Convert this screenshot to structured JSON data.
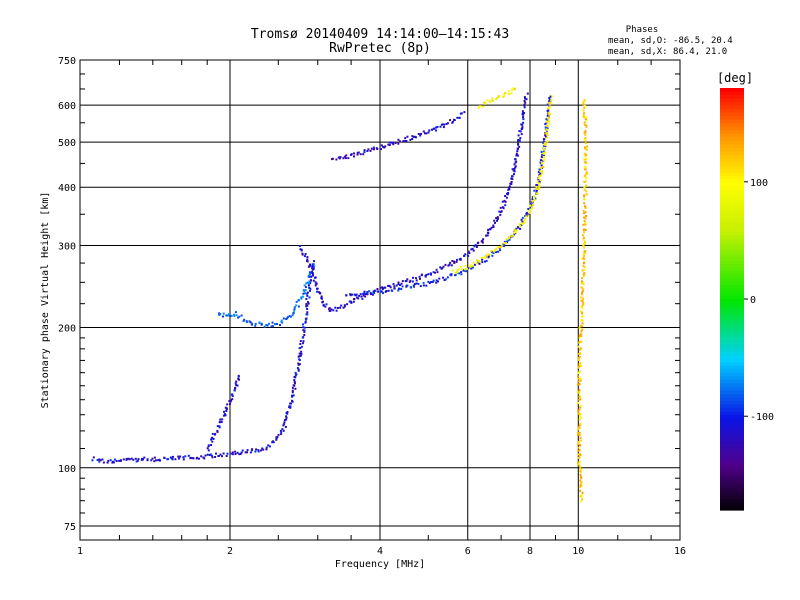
{
  "chart_data": {
    "type": "scatter",
    "title": "Tromsø 20140409 14:14:00—14:15:43",
    "subtitle": "RwPretec (8p)",
    "xlabel": "Frequency [MHz]",
    "ylabel": "Stationary phase Virtual Height [km]",
    "xscale": "log",
    "yscale": "log",
    "xlim": [
      1,
      16
    ],
    "ylim": [
      70,
      750
    ],
    "x_ticks": [
      1,
      2,
      4,
      6,
      8,
      10,
      16
    ],
    "y_ticks": [
      75,
      100,
      200,
      300,
      400,
      500,
      600,
      750
    ],
    "grid": true,
    "phases": {
      "label": "Phases",
      "line_o": "mean, sd,O: -86.5, 20.4",
      "line_x": "mean, sd,X:  86.4, 21.0"
    },
    "colorbar": {
      "label": "[deg]",
      "range": [
        -180,
        180
      ],
      "ticks": [
        100,
        0,
        -100
      ],
      "colormap": "rainbow"
    },
    "traces": [
      {
        "points": [
          [
            1.06,
            105
          ],
          [
            1.1,
            104
          ],
          [
            1.2,
            104
          ],
          [
            1.3,
            104.5
          ],
          [
            1.45,
            105
          ],
          [
            1.6,
            105.5
          ],
          [
            1.75,
            106
          ],
          [
            1.9,
            107
          ],
          [
            2.05,
            108
          ],
          [
            2.2,
            109
          ],
          [
            2.35,
            111
          ],
          [
            2.45,
            115
          ],
          [
            2.55,
            122
          ],
          [
            2.62,
            135
          ],
          [
            2.68,
            150
          ],
          [
            2.74,
            170
          ],
          [
            2.8,
            200
          ],
          [
            2.85,
            230
          ],
          [
            2.9,
            260
          ],
          [
            2.94,
            280
          ]
        ],
        "phase": -110
      },
      {
        "points": [
          [
            1.8,
            110
          ],
          [
            1.85,
            118
          ],
          [
            1.9,
            125
          ],
          [
            1.95,
            133
          ],
          [
            2.0,
            142
          ],
          [
            2.05,
            150
          ],
          [
            2.08,
            160
          ]
        ],
        "phase": -110
      },
      {
        "points": [
          [
            1.88,
            215
          ],
          [
            1.95,
            212
          ],
          [
            2.05,
            215
          ],
          [
            2.2,
            205
          ],
          [
            2.35,
            203
          ],
          [
            2.5,
            205
          ],
          [
            2.6,
            210
          ],
          [
            2.7,
            222
          ],
          [
            2.8,
            240
          ],
          [
            2.88,
            260
          ],
          [
            2.95,
            275
          ]
        ],
        "phase": -80
      },
      {
        "points": [
          [
            2.75,
            300
          ],
          [
            2.85,
            280
          ],
          [
            2.95,
            255
          ],
          [
            3.05,
            228
          ],
          [
            3.2,
            218
          ],
          [
            3.4,
            225
          ],
          [
            3.7,
            235
          ],
          [
            4.0,
            243
          ],
          [
            4.5,
            252
          ],
          [
            5.0,
            262
          ],
          [
            5.5,
            275
          ],
          [
            6.0,
            290
          ],
          [
            6.5,
            315
          ],
          [
            7.0,
            360
          ],
          [
            7.3,
            410
          ],
          [
            7.5,
            470
          ],
          [
            7.65,
            540
          ],
          [
            7.75,
            600
          ],
          [
            7.85,
            640
          ]
        ],
        "phase": -115
      },
      {
        "points": [
          [
            3.4,
            235
          ],
          [
            4.0,
            240
          ],
          [
            4.5,
            245
          ],
          [
            5.0,
            250
          ],
          [
            5.5,
            258
          ],
          [
            6.0,
            268
          ],
          [
            6.5,
            282
          ],
          [
            7.0,
            300
          ],
          [
            7.5,
            325
          ],
          [
            7.9,
            355
          ],
          [
            8.2,
            395
          ],
          [
            8.4,
            450
          ],
          [
            8.55,
            520
          ],
          [
            8.65,
            590
          ],
          [
            8.75,
            635
          ]
        ],
        "phase": -100
      },
      {
        "points": [
          [
            5.6,
            265
          ],
          [
            6.0,
            272
          ],
          [
            6.5,
            285
          ],
          [
            7.0,
            302
          ],
          [
            7.5,
            325
          ],
          [
            7.9,
            350
          ],
          [
            8.2,
            390
          ],
          [
            8.45,
            450
          ],
          [
            8.6,
            520
          ],
          [
            8.7,
            590
          ],
          [
            8.8,
            630
          ]
        ],
        "phase": 100
      },
      {
        "points": [
          [
            3.2,
            460
          ],
          [
            3.5,
            470
          ],
          [
            4.0,
            490
          ],
          [
            4.5,
            510
          ],
          [
            5.0,
            530
          ],
          [
            5.5,
            555
          ],
          [
            5.9,
            580
          ]
        ],
        "phase": -115
      },
      {
        "points": [
          [
            6.3,
            600
          ],
          [
            6.6,
            615
          ],
          [
            6.9,
            625
          ],
          [
            7.2,
            640
          ],
          [
            7.5,
            660
          ]
        ],
        "phase": 100
      },
      {
        "points": [
          [
            10.1,
            85
          ],
          [
            10.05,
            95
          ],
          [
            10.0,
            105
          ],
          [
            10.0,
            115
          ],
          [
            10.0,
            130
          ],
          [
            10.0,
            150
          ],
          [
            10.0,
            170
          ],
          [
            10.05,
            190
          ],
          [
            10.1,
            210
          ],
          [
            10.2,
            280
          ],
          [
            10.3,
            400
          ],
          [
            10.3,
            550
          ],
          [
            10.2,
            620
          ]
        ],
        "phase": 120
      }
    ]
  }
}
